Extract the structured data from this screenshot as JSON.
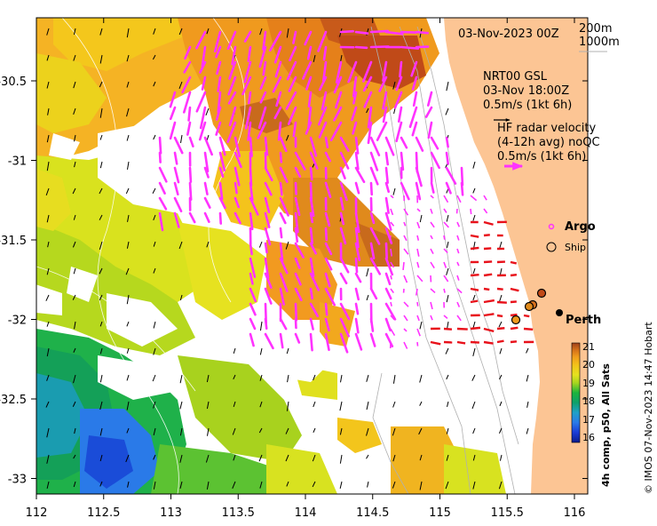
{
  "map": {
    "date_label": "03-Nov-2023 00Z",
    "contour_labels": [
      "200m",
      "1000m"
    ],
    "product_block": [
      "NRT00 GSL",
      "03-Nov 18:00Z",
      "0.5m/s (1kt 6h)"
    ],
    "radar_block": [
      "HF radar velocity",
      "(4-12h avg) noQC",
      "0.5m/s (1kt 6h)"
    ],
    "legend": {
      "argo": "Argo",
      "ship": "Ship"
    },
    "city": "Perth",
    "colorbar": {
      "ticks": [
        "21",
        "20",
        "19",
        "18",
        "17",
        "16"
      ],
      "title": "4h comp, p50, All Sats"
    },
    "credit": "© IMOS 07-Nov-2023 14:47 Hobart",
    "lon_ticks": [
      "112",
      "112.5",
      "113",
      "113.5",
      "114",
      "114.5",
      "115",
      "115.5",
      "116"
    ],
    "lat_ticks": [
      "-30.5",
      "-31",
      "-31.5",
      "-32",
      "-32.5",
      "-33"
    ],
    "colors": {
      "land": "#fcc594",
      "radar_arrow": "#ff33ff",
      "hf_red": "#e8101a"
    }
  },
  "chart_data": {
    "type": "heatmap",
    "title": "03-Nov-2023 00Z",
    "xlabel": "",
    "ylabel": "",
    "x_ticks": [
      112,
      112.5,
      113,
      113.5,
      114,
      114.5,
      115,
      115.5,
      116
    ],
    "y_ticks": [
      -30.5,
      -31,
      -31.5,
      -32,
      -32.5,
      -33
    ],
    "xlim": [
      112,
      116.2
    ],
    "ylim": [
      -33.1,
      -30
    ],
    "colorbar_range": [
      16,
      21
    ],
    "colorbar_label": "4h comp, p50, All Sats",
    "city": {
      "name": "Perth",
      "lon": 115.86,
      "lat": -31.95
    },
    "ships": [
      {
        "lon": 115.72,
        "lat": -31.82
      },
      {
        "lon": 115.67,
        "lat": -31.9
      },
      {
        "lon": 115.64,
        "lat": -31.91
      },
      {
        "lon": 115.54,
        "lat": -32.0
      }
    ]
  }
}
